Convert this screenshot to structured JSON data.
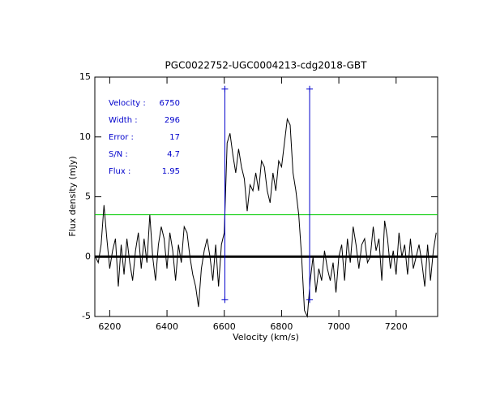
{
  "chart_data": {
    "type": "line",
    "title": "PGC0022752-UGC0004213-cdg2018-GBT",
    "xlabel": "Velocity (km/s)",
    "ylabel": "Flux density (mJy)",
    "x": [
      6150,
      6160,
      6170,
      6180,
      6190,
      6200,
      6210,
      6220,
      6230,
      6240,
      6250,
      6260,
      6270,
      6280,
      6290,
      6300,
      6310,
      6320,
      6330,
      6340,
      6350,
      6360,
      6370,
      6380,
      6390,
      6400,
      6410,
      6420,
      6430,
      6440,
      6450,
      6460,
      6470,
      6480,
      6490,
      6500,
      6510,
      6520,
      6530,
      6540,
      6550,
      6560,
      6570,
      6580,
      6590,
      6600,
      6610,
      6620,
      6630,
      6640,
      6650,
      6660,
      6670,
      6680,
      6690,
      6700,
      6710,
      6720,
      6730,
      6740,
      6750,
      6760,
      6770,
      6780,
      6790,
      6800,
      6810,
      6820,
      6830,
      6840,
      6850,
      6860,
      6870,
      6880,
      6890,
      6900,
      6910,
      6920,
      6930,
      6940,
      6950,
      6960,
      6970,
      6980,
      6990,
      7000,
      7010,
      7020,
      7030,
      7040,
      7050,
      7060,
      7070,
      7080,
      7090,
      7100,
      7110,
      7120,
      7130,
      7140,
      7150,
      7160,
      7170,
      7180,
      7190,
      7200,
      7210,
      7220,
      7230,
      7240,
      7250,
      7260,
      7270,
      7280,
      7290,
      7300,
      7310,
      7320,
      7330,
      7340
    ],
    "series": [
      {
        "color": "#000000",
        "values": [
          0,
          -0.5,
          1,
          4.3,
          1.5,
          -1,
          0.5,
          1.5,
          -2.5,
          1,
          -1.5,
          1.5,
          -0.5,
          -2,
          0.5,
          2,
          -1,
          1.5,
          -0.5,
          3.5,
          0,
          -2,
          1,
          2.5,
          1.5,
          -1,
          2,
          0.5,
          -2,
          1,
          -0.5,
          2.5,
          2,
          0,
          -1.5,
          -2.5,
          -4.2,
          -1,
          0.5,
          1.5,
          0,
          -2,
          1,
          -2.5,
          1,
          2,
          9.5,
          10.3,
          8.5,
          7,
          9,
          7.5,
          6.5,
          3.8,
          6,
          5.5,
          7,
          5.5,
          8,
          7.5,
          5.5,
          4.5,
          7,
          5.5,
          8,
          7.5,
          9.5,
          11.5,
          11,
          7,
          5.5,
          3.5,
          0,
          -4.5,
          -5,
          -2,
          0,
          -3,
          -1,
          -2,
          0.5,
          -1,
          -2,
          -0.5,
          -3,
          0,
          1,
          -2,
          1.5,
          -0.5,
          2.5,
          1,
          -1,
          1,
          1.5,
          -0.5,
          0,
          2.5,
          0.5,
          1.5,
          -2,
          3,
          1.5,
          -1,
          0.5,
          -1.5,
          2,
          0,
          1,
          -1.5,
          1.5,
          -1,
          0,
          1,
          -0.5,
          -2.5,
          1,
          -2,
          0.5,
          2
        ]
      }
    ],
    "threshold": {
      "value": 3.5,
      "color": "#00cc00"
    },
    "markers": [
      {
        "x": 6602,
        "ymin": -3.6,
        "ymax": 14,
        "color": "#0000cc"
      },
      {
        "x": 6898,
        "ymin": -3.6,
        "ymax": 14,
        "color": "#0000cc"
      }
    ],
    "annotations": [
      {
        "label": "Velocity :",
        "value": 6750
      },
      {
        "label": "Width :",
        "value": 296
      },
      {
        "label": "Error :",
        "value": 17
      },
      {
        "label": "S/N :",
        "value": 4.7
      },
      {
        "label": "Flux :",
        "value": 1.95
      }
    ],
    "annotation_color": "#0000cc",
    "xlim": [
      6148,
      7345
    ],
    "xticks": [
      6200,
      6400,
      6600,
      6800,
      7000,
      7200
    ],
    "ylim": [
      -5,
      15
    ],
    "yticks": [
      -5,
      0,
      5,
      10,
      15
    ]
  }
}
